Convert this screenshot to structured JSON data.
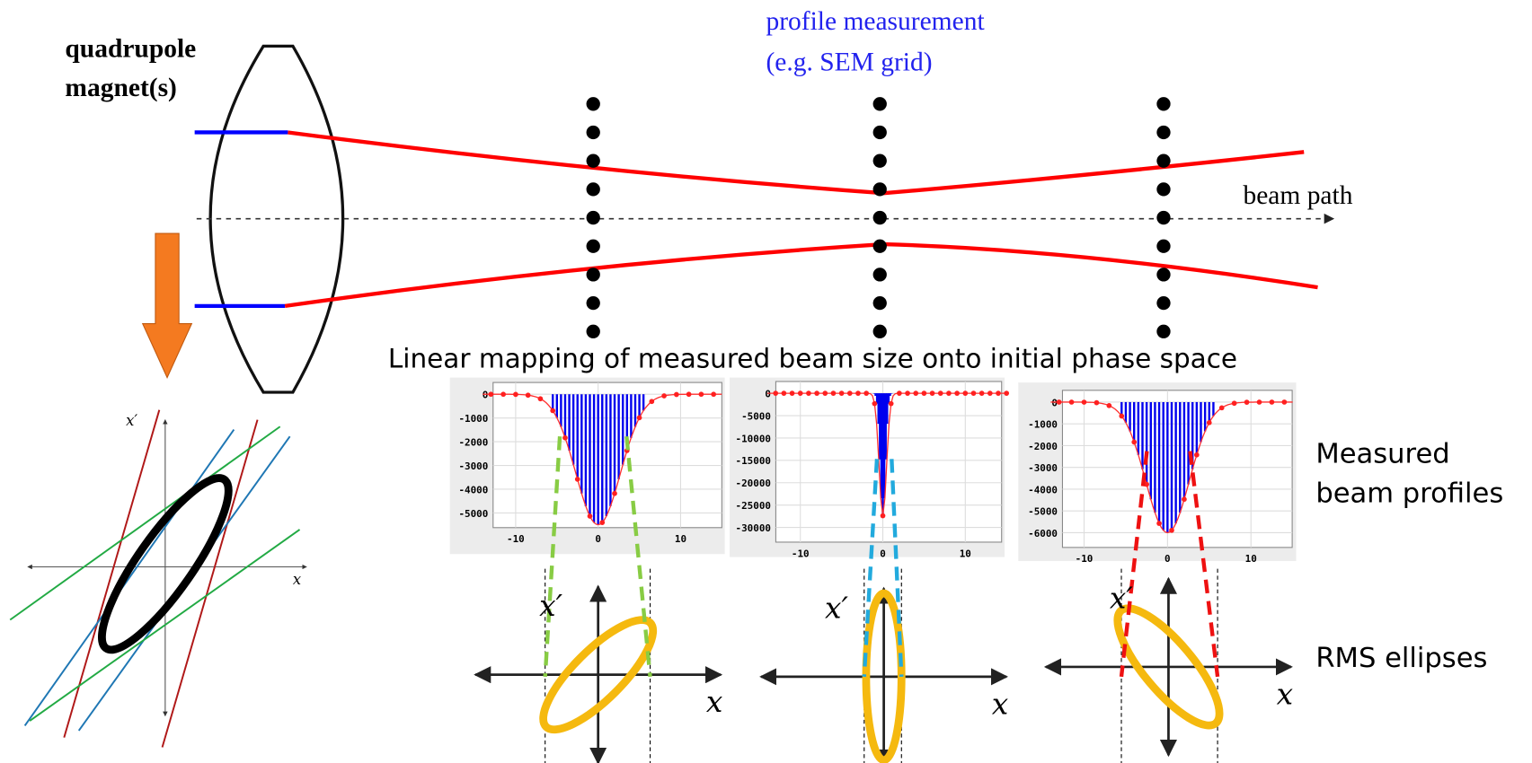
{
  "quadrupole_label": [
    "quadrupole",
    "magnet(s)"
  ],
  "profile_label": [
    "profile measurement",
    "(e.g. SEM grid)"
  ],
  "beam_path_label": "beam path",
  "mapping_title": "Linear mapping of measured beam size onto initial phase space",
  "measured_label": [
    "Measured",
    "beam profiles"
  ],
  "rms_label": "RMS ellipses",
  "phase_space": {
    "x_prime": "x′",
    "x": "x"
  },
  "profiles": [
    {
      "yticks": [
        "0",
        "-1000",
        "-2000",
        "-3000",
        "-4000",
        "-5000"
      ],
      "xticks": [
        "-10",
        "0",
        "10"
      ]
    },
    {
      "yticks": [
        "0",
        "-5000",
        "-10000",
        "-15000",
        "-20000",
        "-25000",
        "-30000"
      ],
      "xticks": [
        "-10",
        "0",
        "10"
      ]
    },
    {
      "yticks": [
        "0",
        "-1000",
        "-2000",
        "-3000",
        "-4000",
        "-5000",
        "-6000"
      ],
      "xticks": [
        "-10",
        "0",
        "10"
      ]
    }
  ],
  "ellipses": [
    {
      "x_prime": "x′",
      "x": "x"
    },
    {
      "x_prime": "x′",
      "x": "x"
    },
    {
      "x_prime": "x′",
      "x": "x"
    }
  ]
}
